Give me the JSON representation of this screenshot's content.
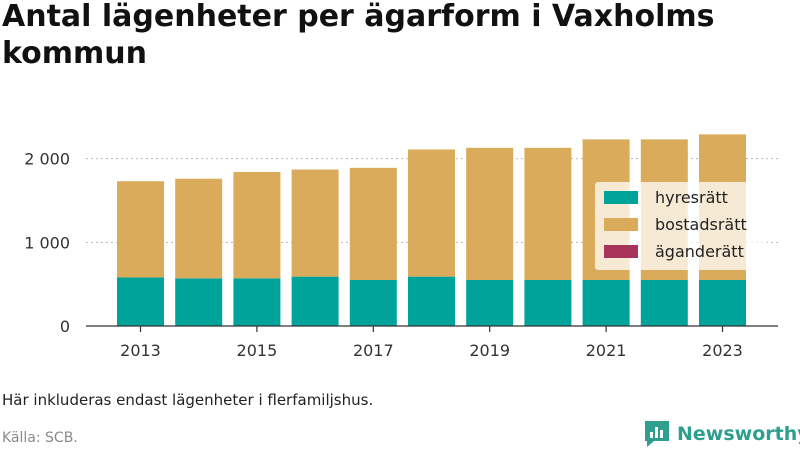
{
  "title": "Antal lägenheter per ägarform i Vaxholms kommun",
  "note": "Här inkluderas endast lägenheter i flerfamiljshus.",
  "source": "Källa: SCB.",
  "brand": {
    "name": "Newsworthy",
    "icon": "newsworthy-logo-icon",
    "color": "#2e9e8f"
  },
  "chart_data": {
    "type": "bar",
    "stacked": true,
    "categories": [
      "2013",
      "2014",
      "2015",
      "2016",
      "2017",
      "2018",
      "2019",
      "2020",
      "2021",
      "2022",
      "2023"
    ],
    "x_tick_labels": [
      "2013",
      "2015",
      "2017",
      "2019",
      "2021",
      "2023"
    ],
    "y_tick_labels": [
      "0",
      "1 000",
      "2 000"
    ],
    "y_ticks": [
      0,
      1000,
      2000
    ],
    "ylim": [
      0,
      2450
    ],
    "grid": "horizontal-dashed",
    "legend_position": "right",
    "series": [
      {
        "name": "hyresrätt",
        "color": "#00a39a",
        "values": [
          580,
          570,
          570,
          590,
          550,
          590,
          550,
          550,
          550,
          550,
          550
        ]
      },
      {
        "name": "bostadsrätt",
        "color": "#d9ab5a",
        "values": [
          1150,
          1190,
          1270,
          1280,
          1340,
          1520,
          1580,
          1580,
          1680,
          1680,
          1740
        ]
      },
      {
        "name": "äganderätt",
        "color": "#a8345b",
        "values": [
          0,
          0,
          0,
          0,
          0,
          0,
          0,
          0,
          0,
          0,
          0
        ]
      }
    ]
  }
}
